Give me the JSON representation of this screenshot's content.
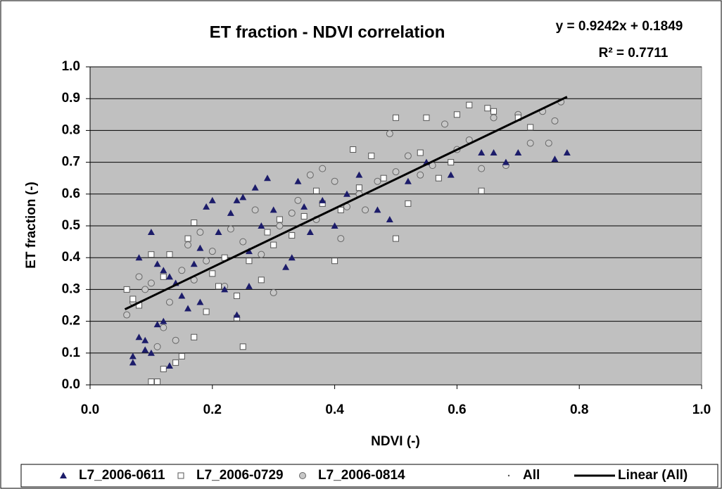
{
  "chart_data": {
    "type": "scatter",
    "title": "ET fraction - NDVI correlation",
    "x_label": "NDVI (-)",
    "y_label": "ET fraction (-)",
    "xlim": [
      0,
      1
    ],
    "ylim": [
      0,
      1
    ],
    "xticks": [
      {
        "value": 0,
        "label": "0.0"
      },
      0.2,
      0.4,
      0.6,
      0.8,
      {
        "value": 1,
        "label": "1.0"
      }
    ],
    "yticks": [
      {
        "value": 0,
        "label": "0.0"
      },
      0.1,
      0.2,
      0.3,
      0.4,
      0.5,
      0.6,
      0.7,
      0.8,
      0.9,
      {
        "value": 1,
        "label": "1.0"
      }
    ],
    "grid": true,
    "legend": "bottom",
    "series": [
      {
        "name": "L7_2006-0611",
        "marker": "triangle",
        "color": "#1c1c6a",
        "x": [
          0.07,
          0.07,
          0.08,
          0.09,
          0.09,
          0.08,
          0.1,
          0.11,
          0.12,
          0.13,
          0.12,
          0.14,
          0.15,
          0.16,
          0.17,
          0.18,
          0.19,
          0.2,
          0.21,
          0.22,
          0.23,
          0.24,
          0.25,
          0.26,
          0.27,
          0.28,
          0.29,
          0.3,
          0.32,
          0.33,
          0.34,
          0.35,
          0.36,
          0.38,
          0.4,
          0.42,
          0.44,
          0.47,
          0.49,
          0.52,
          0.55,
          0.59,
          0.64,
          0.66,
          0.68,
          0.7,
          0.76,
          0.78,
          0.24,
          0.26,
          0.18,
          0.11,
          0.13,
          0.1
        ],
        "values": [
          0.09,
          0.07,
          0.15,
          0.14,
          0.11,
          0.4,
          0.48,
          0.38,
          0.36,
          0.06,
          0.2,
          0.32,
          0.28,
          0.24,
          0.38,
          0.43,
          0.56,
          0.58,
          0.48,
          0.3,
          0.54,
          0.58,
          0.59,
          0.42,
          0.62,
          0.5,
          0.65,
          0.55,
          0.37,
          0.4,
          0.64,
          0.56,
          0.48,
          0.58,
          0.5,
          0.6,
          0.66,
          0.55,
          0.52,
          0.64,
          0.7,
          0.66,
          0.73,
          0.73,
          0.7,
          0.73,
          0.71,
          0.73,
          0.22,
          0.31,
          0.26,
          0.19,
          0.34,
          0.1
        ]
      },
      {
        "name": "L7_2006-0729",
        "marker": "square",
        "color": "#ffffff",
        "x": [
          0.06,
          0.07,
          0.08,
          0.1,
          0.11,
          0.12,
          0.14,
          0.15,
          0.17,
          0.1,
          0.12,
          0.16,
          0.17,
          0.19,
          0.2,
          0.22,
          0.24,
          0.25,
          0.24,
          0.26,
          0.28,
          0.29,
          0.31,
          0.33,
          0.35,
          0.37,
          0.38,
          0.4,
          0.41,
          0.43,
          0.44,
          0.46,
          0.48,
          0.5,
          0.5,
          0.52,
          0.54,
          0.55,
          0.57,
          0.59,
          0.6,
          0.62,
          0.64,
          0.65,
          0.66,
          0.7,
          0.72,
          0.13,
          0.21,
          0.3
        ],
        "values": [
          0.3,
          0.27,
          0.25,
          0.01,
          0.01,
          0.05,
          0.07,
          0.09,
          0.15,
          0.41,
          0.34,
          0.46,
          0.51,
          0.23,
          0.35,
          0.4,
          0.21,
          0.12,
          0.28,
          0.39,
          0.33,
          0.48,
          0.52,
          0.47,
          0.53,
          0.61,
          0.57,
          0.39,
          0.55,
          0.74,
          0.62,
          0.72,
          0.65,
          0.46,
          0.84,
          0.57,
          0.73,
          0.84,
          0.65,
          0.7,
          0.85,
          0.88,
          0.61,
          0.87,
          0.86,
          0.84,
          0.81,
          0.41,
          0.31,
          0.44
        ]
      },
      {
        "name": "L7_2006-0814",
        "marker": "circle",
        "color": "#c8c8c8",
        "x": [
          0.06,
          0.07,
          0.08,
          0.09,
          0.1,
          0.11,
          0.12,
          0.13,
          0.14,
          0.15,
          0.16,
          0.18,
          0.19,
          0.2,
          0.22,
          0.23,
          0.25,
          0.27,
          0.28,
          0.3,
          0.31,
          0.33,
          0.34,
          0.36,
          0.37,
          0.38,
          0.4,
          0.41,
          0.42,
          0.44,
          0.45,
          0.47,
          0.49,
          0.5,
          0.52,
          0.54,
          0.56,
          0.58,
          0.6,
          0.62,
          0.64,
          0.66,
          0.68,
          0.7,
          0.72,
          0.74,
          0.77,
          0.76,
          0.75,
          0.17
        ],
        "values": [
          0.22,
          0.26,
          0.34,
          0.3,
          0.32,
          0.12,
          0.18,
          0.26,
          0.14,
          0.36,
          0.44,
          0.48,
          0.39,
          0.42,
          0.31,
          0.49,
          0.45,
          0.55,
          0.41,
          0.29,
          0.5,
          0.54,
          0.58,
          0.66,
          0.52,
          0.68,
          0.64,
          0.46,
          0.56,
          0.6,
          0.55,
          0.64,
          0.79,
          0.67,
          0.72,
          0.66,
          0.69,
          0.82,
          0.74,
          0.77,
          0.68,
          0.84,
          0.69,
          0.85,
          0.76,
          0.86,
          0.89,
          0.83,
          0.76,
          0.33
        ]
      }
    ],
    "all_series_name": "All",
    "trendline": {
      "name": "Linear (All)",
      "slope": 0.9242,
      "intercept": 0.1849,
      "x_range": [
        0.057,
        0.78
      ],
      "color": "#000000"
    },
    "annotations": [
      "y = 0.9242x + 0.1849",
      "R² = 0.7711"
    ]
  }
}
